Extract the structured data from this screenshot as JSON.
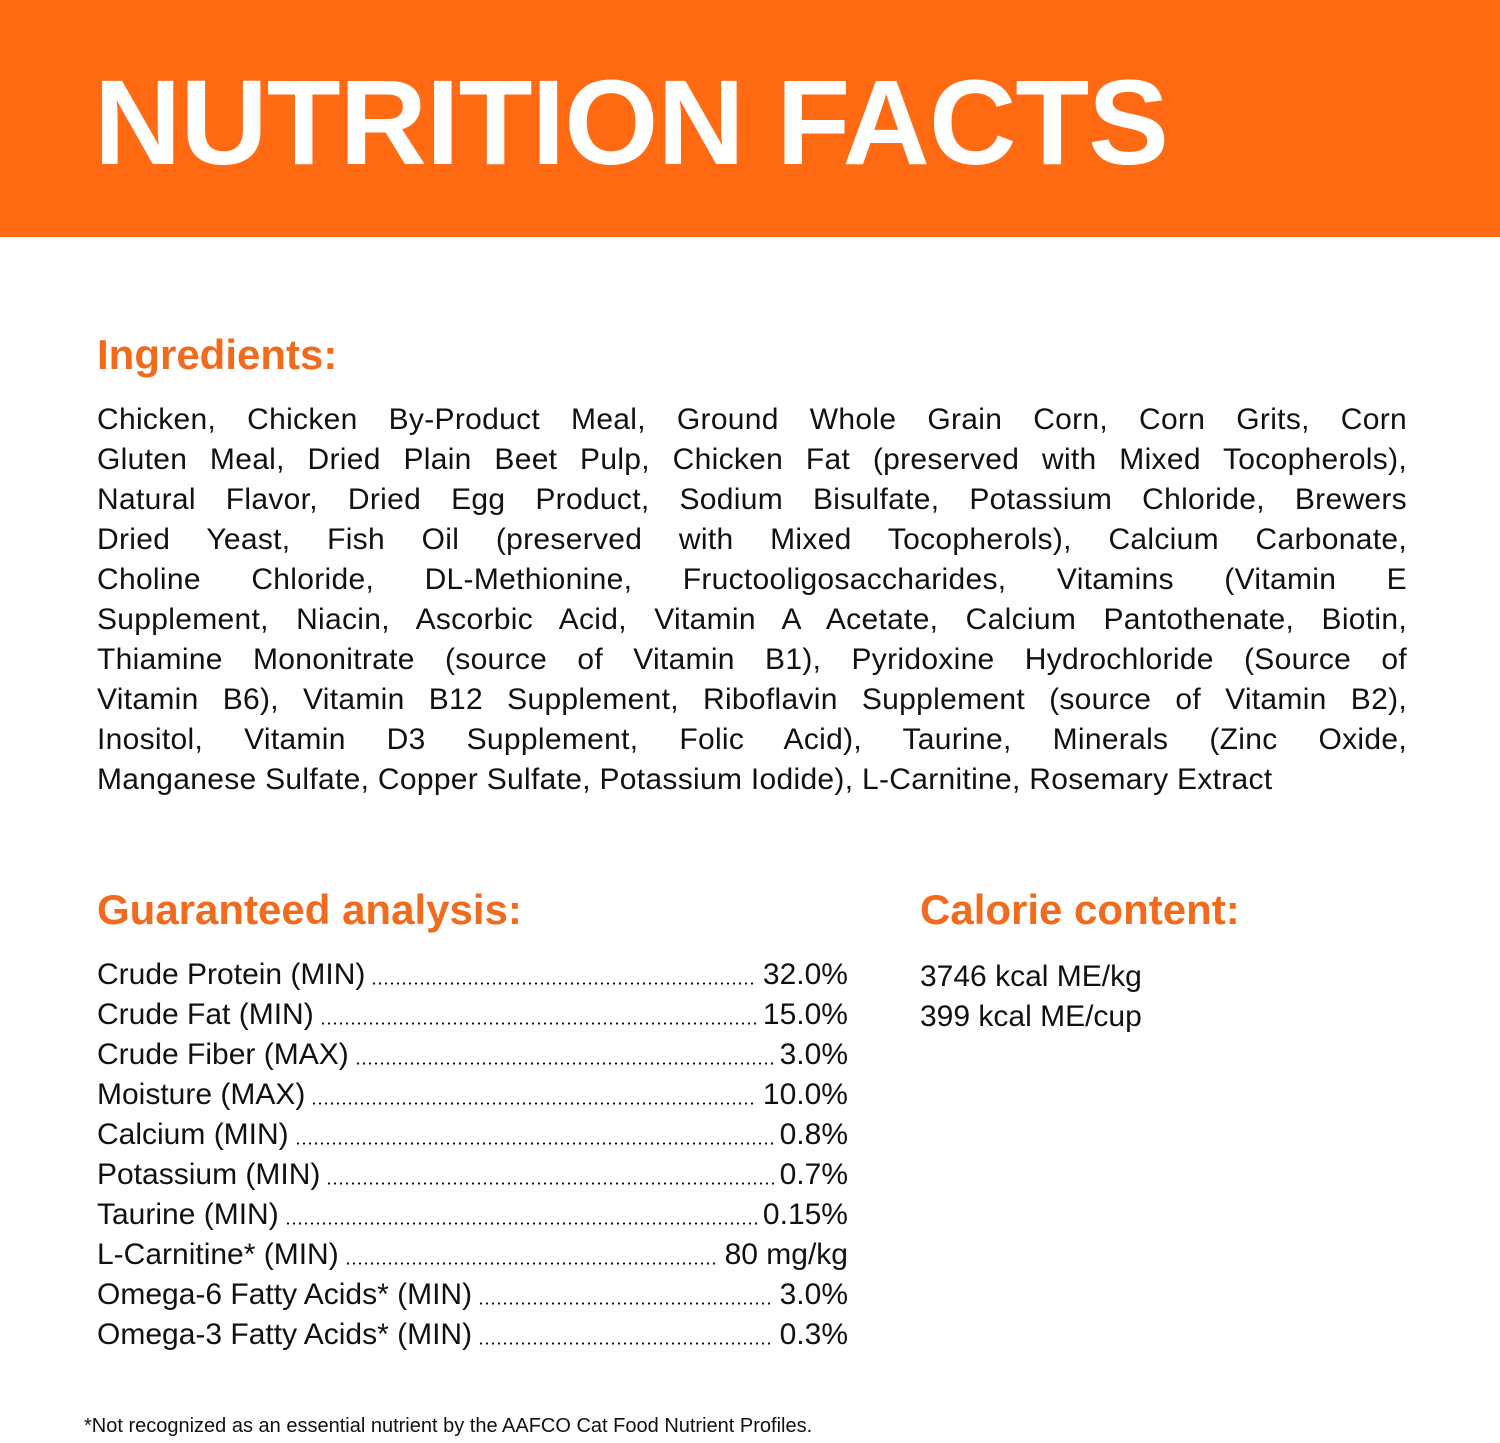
{
  "header": {
    "title": "NUTRITION FACTS",
    "background_color": "#FF6A13"
  },
  "ingredients": {
    "heading": "Ingredients:",
    "lines": [
      "Chicken, Chicken By-Product Meal, Ground Whole Grain Corn, Corn Grits, Corn",
      "Gluten Meal, Dried Plain Beet Pulp, Chicken Fat (preserved with Mixed Tocopherols),",
      "Natural Flavor, Dried Egg Product, Sodium Bisulfate, Potassium Chloride, Brewers",
      "Dried Yeast, Fish Oil (preserved with Mixed Tocopherols), Calcium Carbonate,",
      "Choline Chloride, DL-Methionine, Fructooligosaccharides, Vitamins (Vitamin E",
      "Supplement, Niacin, Ascorbic Acid, Vitamin A Acetate, Calcium Pantothenate, Biotin,",
      "Thiamine Mononitrate (source of Vitamin B1), Pyridoxine Hydrochloride (Source of",
      "Vitamin B6), Vitamin B12 Supplement, Riboflavin Supplement (source of Vitamin B2),",
      "Inositol, Vitamin D3 Supplement, Folic Acid), Taurine, Minerals (Zinc Oxide,",
      "Manganese Sulfate, Copper Sulfate, Potassium Iodide), L-Carnitine, Rosemary Extract"
    ]
  },
  "analysis": {
    "heading": "Guaranteed analysis:",
    "rows": [
      {
        "label": "Crude Protein (MIN)",
        "value": "32.0%"
      },
      {
        "label": "Crude Fat (MIN)",
        "value": "15.0%"
      },
      {
        "label": "Crude Fiber (MAX)",
        "value": "3.0%"
      },
      {
        "label": "Moisture (MAX)",
        "value": "10.0%"
      },
      {
        "label": "Calcium (MIN)",
        "value": "0.8%"
      },
      {
        "label": "Potassium (MIN)",
        "value": "0.7%"
      },
      {
        "label": "Taurine (MIN)",
        "value": "0.15%"
      },
      {
        "label": "L-Carnitine*  (MIN)",
        "value": "80 mg/kg"
      },
      {
        "label": "Omega-6 Fatty Acids*  (MIN)",
        "value": "3.0%"
      },
      {
        "label": "Omega-3 Fatty Acids*  (MIN)",
        "value": "0.3%"
      }
    ]
  },
  "calorie": {
    "heading": "Calorie content:",
    "lines": [
      "3746 kcal ME/kg",
      "399 kcal ME/cup"
    ]
  },
  "footnote": "*Not recognized as an essential nutrient by the AAFCO Cat Food Nutrient Profiles.",
  "accent_color": "#F26A1B"
}
